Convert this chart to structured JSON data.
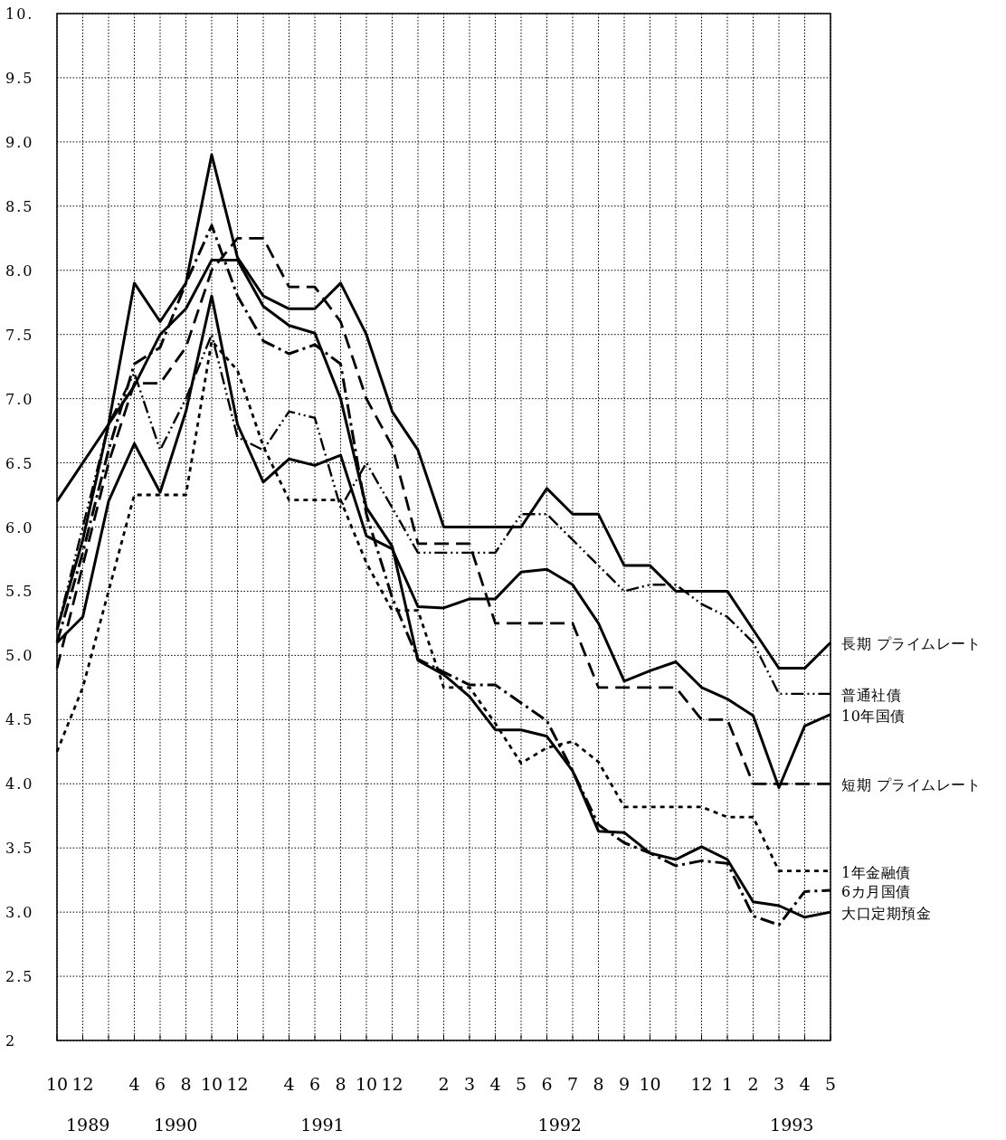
{
  "chart_data": {
    "type": "line",
    "categories": [
      "10",
      "12",
      null,
      "4",
      "6",
      "8",
      "10",
      "12",
      null,
      "4",
      "6",
      "8",
      "10",
      "12",
      null,
      "2",
      "3",
      "4",
      "5",
      "6",
      "7",
      "8",
      "9",
      "10",
      null,
      "12",
      "1",
      "2",
      "3",
      "4",
      "5"
    ],
    "series": [
      {
        "name": "長期 プライムレート",
        "color": "#000000",
        "line_style": "solid",
        "values": [
          6.2,
          6.5,
          6.8,
          7.9,
          7.6,
          7.9,
          8.9,
          8.1,
          7.8,
          7.7,
          7.7,
          7.9,
          7.5,
          6.9,
          6.6,
          6.0,
          6.0,
          6.0,
          6.0,
          6.3,
          6.1,
          6.1,
          5.7,
          5.7,
          5.5,
          5.5,
          5.5,
          5.2,
          4.9,
          4.9,
          5.1
        ]
      },
      {
        "name": "普通社債",
        "color": "#000000",
        "line_style": "dashdotdot",
        "values": [
          5.2,
          6.0,
          6.8,
          7.2,
          6.6,
          7.0,
          7.5,
          6.7,
          6.6,
          6.9,
          6.85,
          6.15,
          6.5,
          6.15,
          5.8,
          5.8,
          5.8,
          5.8,
          6.1,
          6.1,
          5.9,
          5.7,
          5.5,
          5.55,
          5.55,
          5.4,
          5.3,
          5.1,
          4.7,
          4.7,
          4.7
        ]
      },
      {
        "name": "10年国債",
        "color": "#000000",
        "line_style": "solid",
        "values": [
          5.1,
          5.3,
          6.2,
          6.65,
          6.27,
          6.9,
          7.8,
          6.8,
          6.35,
          6.53,
          6.48,
          6.56,
          5.93,
          5.83,
          5.38,
          5.37,
          5.44,
          5.44,
          5.65,
          5.67,
          5.55,
          5.25,
          4.8,
          4.88,
          4.95,
          4.75,
          4.66,
          4.53,
          3.97,
          4.45,
          4.54
        ]
      },
      {
        "name": "短期 プライムレート",
        "color": "#000000",
        "line_style": "dashed",
        "values": [
          4.9,
          5.7,
          6.5,
          7.12,
          7.12,
          7.4,
          8.0,
          8.25,
          8.25,
          7.87,
          7.87,
          7.6,
          7.0,
          6.63,
          5.87,
          5.87,
          5.87,
          5.25,
          5.25,
          5.25,
          5.25,
          4.75,
          4.75,
          4.75,
          4.75,
          4.5,
          4.5,
          4.0,
          4.0,
          4.0,
          4.0
        ]
      },
      {
        "name": "1年金融債",
        "color": "#000000",
        "line_style": "dotted",
        "values": [
          4.25,
          4.75,
          5.5,
          6.25,
          6.25,
          6.25,
          7.45,
          7.22,
          6.63,
          6.21,
          6.21,
          6.21,
          5.72,
          5.35,
          5.35,
          4.75,
          4.75,
          4.47,
          4.16,
          4.28,
          4.33,
          4.17,
          3.82,
          3.82,
          3.82,
          3.82,
          3.74,
          3.74,
          3.32,
          3.32,
          3.32
        ]
      },
      {
        "name": "6カ月国債",
        "color": "#000000",
        "line_style": "dashdot",
        "values": [
          5.1,
          5.8,
          6.6,
          7.27,
          7.4,
          7.9,
          8.35,
          7.8,
          7.45,
          7.35,
          7.42,
          7.27,
          6.1,
          5.45,
          4.97,
          4.87,
          4.77,
          4.77,
          4.63,
          4.49,
          4.1,
          3.68,
          3.54,
          3.46,
          3.36,
          3.4,
          3.38,
          2.97,
          2.9,
          3.16,
          3.17
        ]
      },
      {
        "name": "大口定期預金",
        "color": "#000000",
        "line_style": "solid",
        "values": [
          5.2,
          5.9,
          6.8,
          7.1,
          7.5,
          7.7,
          8.08,
          8.08,
          7.72,
          7.57,
          7.51,
          7.0,
          6.15,
          5.85,
          4.96,
          4.85,
          4.68,
          4.42,
          4.42,
          4.37,
          4.1,
          3.63,
          3.62,
          3.46,
          3.41,
          3.51,
          3.41,
          3.08,
          3.05,
          2.96,
          3.0
        ]
      }
    ],
    "ylim": [
      2,
      10
    ],
    "yticks": [
      2,
      2.5,
      {
        "value": 3,
        "label": "3.0"
      },
      3.5,
      {
        "value": 4,
        "label": "4.0"
      },
      4.5,
      {
        "value": 5,
        "label": "5.0"
      },
      5.5,
      {
        "value": 6,
        "label": "6.0"
      },
      6.5,
      {
        "value": 7,
        "label": "7.0"
      },
      7.5,
      {
        "value": 8,
        "label": "8.0"
      },
      8.5,
      {
        "value": 9,
        "label": "9.0"
      },
      9.5,
      {
        "value": 10,
        "label": "10."
      }
    ],
    "annotations": [
      "1989",
      "1990",
      "1991",
      "1992",
      "1993"
    ],
    "grid": true,
    "legend": false,
    "marker": "none"
  }
}
